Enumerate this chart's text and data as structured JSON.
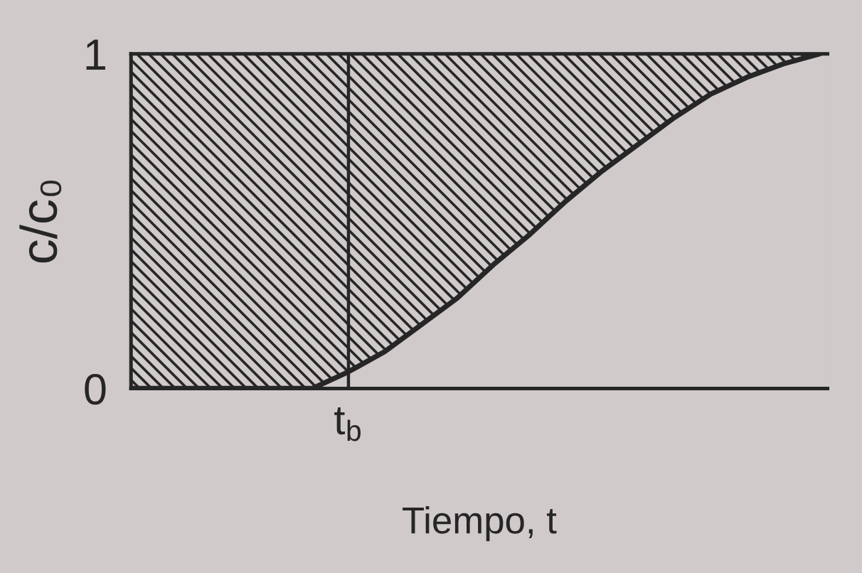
{
  "chart_data": {
    "type": "line",
    "xlabel": "Tiempo, t",
    "ylabel": "c/c₀",
    "categories": [
      null,
      null,
      null,
      null,
      null,
      null,
      "t$_{b}$",
      null,
      null,
      null,
      null,
      null,
      null,
      null,
      null,
      null,
      null,
      null,
      null,
      null
    ],
    "series": [
      {
        "color": "#262626",
        "values": [
          0,
          0,
          0,
          0,
          0,
          0,
          0.05,
          0.11,
          0.19,
          0.27,
          0.37,
          0.46,
          0.56,
          0.65,
          0.73,
          0.81,
          0.88,
          0.93,
          0.97,
          1
        ],
        "lower": [
          0,
          0,
          0,
          0,
          0,
          0,
          0.05,
          0.11,
          0.19,
          0.27,
          0.37,
          0.46,
          0.56,
          0.65,
          0.73,
          0.81,
          0.88,
          0.93,
          0.97,
          1
        ],
        "upper": [
          1,
          1,
          1,
          1,
          1,
          1,
          1,
          1,
          1,
          1,
          1,
          1,
          1,
          1,
          1,
          1,
          1,
          1,
          1,
          1
        ]
      }
    ],
    "ylim": [
      0,
      1
    ],
    "yticks": [
      0,
      1
    ],
    "ref_lines": [
      {
        "axis": "x",
        "value": "t$_{b}$",
        "color": "#262626"
      }
    ],
    "marker": "none",
    "line_style": "solid"
  }
}
